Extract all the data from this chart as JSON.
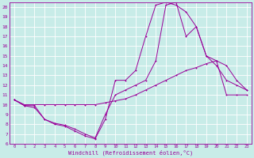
{
  "xlabel": "Windchill (Refroidissement éolien,°C)",
  "bg_color": "#c8ece8",
  "line_color": "#990099",
  "grid_color": "#ffffff",
  "ylim": [
    6,
    20.5
  ],
  "xlim": [
    -0.5,
    23.5
  ],
  "yticks": [
    6,
    7,
    8,
    9,
    10,
    11,
    12,
    13,
    14,
    15,
    16,
    17,
    18,
    19,
    20
  ],
  "xticks": [
    0,
    1,
    2,
    3,
    4,
    5,
    6,
    7,
    8,
    9,
    10,
    11,
    12,
    13,
    14,
    15,
    16,
    17,
    18,
    19,
    20,
    21,
    22,
    23
  ],
  "line1_x": [
    0,
    1,
    2,
    3,
    4,
    5,
    6,
    7,
    8,
    9,
    10,
    11,
    12,
    13,
    14,
    15,
    16,
    17,
    18,
    19,
    20,
    21,
    22,
    23
  ],
  "line1_y": [
    10.5,
    9.9,
    9.9,
    8.5,
    8.0,
    7.8,
    7.3,
    6.8,
    6.5,
    8.5,
    12.5,
    12.5,
    13.5,
    17.0,
    20.2,
    20.5,
    20.2,
    19.5,
    18.0,
    15.0,
    14.0,
    12.5,
    12.0,
    11.5
  ],
  "line2_x": [
    0,
    1,
    2,
    3,
    4,
    5,
    6,
    7,
    8,
    9,
    10,
    11,
    12,
    13,
    14,
    15,
    16,
    17,
    18,
    19,
    20,
    21,
    22,
    23
  ],
  "line2_y": [
    10.5,
    10.0,
    10.0,
    10.0,
    10.0,
    10.0,
    10.0,
    10.0,
    10.0,
    10.2,
    10.4,
    10.6,
    11.0,
    11.5,
    12.0,
    12.5,
    13.0,
    13.5,
    13.8,
    14.2,
    14.5,
    11.0,
    11.0,
    11.0
  ],
  "line3_x": [
    0,
    1,
    2,
    3,
    4,
    5,
    6,
    7,
    8,
    9,
    10,
    11,
    12,
    13,
    14,
    15,
    16,
    17,
    18,
    19,
    20,
    21,
    22,
    23
  ],
  "line3_y": [
    10.5,
    9.9,
    9.7,
    8.5,
    8.1,
    7.9,
    7.5,
    7.0,
    6.6,
    9.0,
    11.0,
    11.5,
    12.0,
    12.5,
    14.5,
    20.2,
    20.5,
    17.0,
    18.0,
    15.0,
    14.5,
    14.0,
    12.5,
    11.5
  ]
}
